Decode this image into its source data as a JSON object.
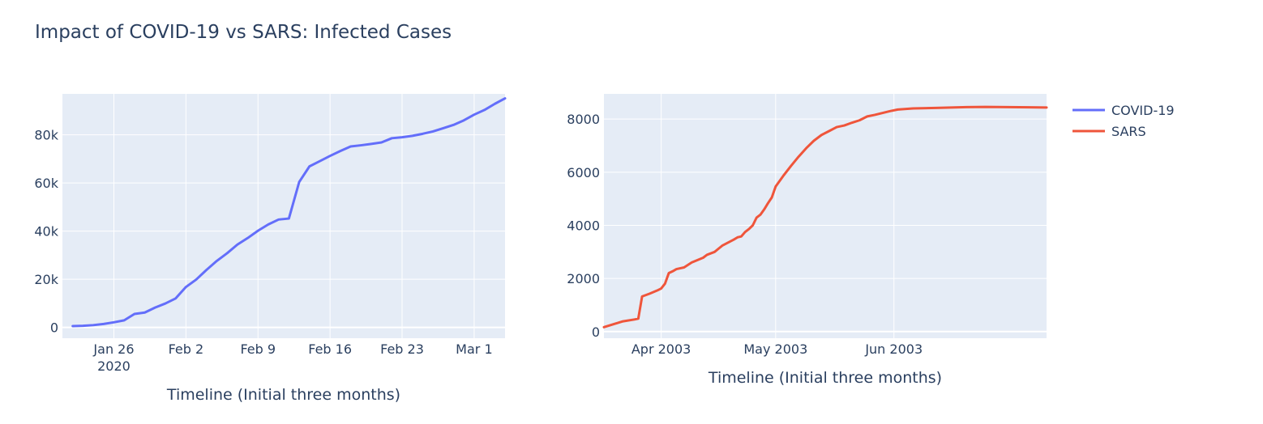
{
  "chart_data": {
    "type": "line",
    "title": "Impact of COVID-19 vs SARS: Infected Cases",
    "colors": {
      "plot_background": "#e5ecf6",
      "grid": "#ffffff",
      "text": "#2a3f5f"
    },
    "legend": {
      "placement": "top-right",
      "entries": [
        {
          "name": "COVID-19",
          "color": "#636efa"
        },
        {
          "name": "SARS",
          "color": "#ef553b"
        }
      ]
    },
    "subplots": [
      {
        "id": "covid",
        "xlabel": "Timeline (Initial three months)",
        "ylabel": "",
        "grid": true,
        "xlim": [
          "2020-01-21",
          "2020-03-04"
        ],
        "ylim": [
          -4500,
          97000
        ],
        "x_ticks": [
          {
            "date": "2020-01-26",
            "label": "Jan 26",
            "sublabel": "2020"
          },
          {
            "date": "2020-02-02",
            "label": "Feb 2"
          },
          {
            "date": "2020-02-09",
            "label": "Feb 9"
          },
          {
            "date": "2020-02-16",
            "label": "Feb 16"
          },
          {
            "date": "2020-02-23",
            "label": "Feb 23"
          },
          {
            "date": "2020-03-01",
            "label": "Mar 1"
          }
        ],
        "y_ticks": [
          {
            "value": 0,
            "label": "0"
          },
          {
            "value": 20000,
            "label": "20k"
          },
          {
            "value": 40000,
            "label": "40k"
          },
          {
            "value": 60000,
            "label": "60k"
          },
          {
            "value": 80000,
            "label": "80k"
          }
        ],
        "series": [
          {
            "name": "COVID-19",
            "color": "#636efa",
            "points": [
              [
                "2020-01-22",
                555
              ],
              [
                "2020-01-23",
                654
              ],
              [
                "2020-01-24",
                941
              ],
              [
                "2020-01-25",
                1434
              ],
              [
                "2020-01-26",
                2118
              ],
              [
                "2020-01-27",
                2927
              ],
              [
                "2020-01-28",
                5578
              ],
              [
                "2020-01-29",
                6166
              ],
              [
                "2020-01-30",
                8234
              ],
              [
                "2020-01-31",
                9927
              ],
              [
                "2020-02-01",
                12038
              ],
              [
                "2020-02-02",
                16787
              ],
              [
                "2020-02-03",
                19881
              ],
              [
                "2020-02-04",
                23892
              ],
              [
                "2020-02-05",
                27635
              ],
              [
                "2020-02-06",
                30817
              ],
              [
                "2020-02-07",
                34391
              ],
              [
                "2020-02-08",
                37120
              ],
              [
                "2020-02-09",
                40150
              ],
              [
                "2020-02-10",
                42762
              ],
              [
                "2020-02-11",
                44802
              ],
              [
                "2020-02-12",
                45221
              ],
              [
                "2020-02-13",
                60368
              ],
              [
                "2020-02-14",
                66885
              ],
              [
                "2020-02-15",
                69030
              ],
              [
                "2020-02-16",
                71224
              ],
              [
                "2020-02-17",
                73258
              ],
              [
                "2020-02-18",
                75136
              ],
              [
                "2020-02-19",
                75639
              ],
              [
                "2020-02-20",
                76197
              ],
              [
                "2020-02-21",
                76823
              ],
              [
                "2020-02-22",
                78579
              ],
              [
                "2020-02-23",
                78965
              ],
              [
                "2020-02-24",
                79568
              ],
              [
                "2020-02-25",
                80413
              ],
              [
                "2020-02-26",
                81395
              ],
              [
                "2020-02-27",
                82754
              ],
              [
                "2020-02-28",
                84120
              ],
              [
                "2020-02-29",
                86011
              ],
              [
                "2020-03-01",
                88369
              ],
              [
                "2020-03-02",
                90306
              ],
              [
                "2020-03-03",
                92840
              ],
              [
                "2020-03-04",
                95120
              ]
            ]
          }
        ]
      },
      {
        "id": "sars",
        "xlabel": "Timeline (Initial three months)",
        "ylabel": "",
        "grid": true,
        "xlim": [
          "2003-03-17",
          "2003-07-11"
        ],
        "ylim": [
          -250,
          8950
        ],
        "x_ticks": [
          {
            "date": "2003-04-01",
            "label": "Apr 2003"
          },
          {
            "date": "2003-05-01",
            "label": "May 2003"
          },
          {
            "date": "2003-06-01",
            "label": "Jun 2003"
          }
        ],
        "y_ticks": [
          {
            "value": 0,
            "label": "0"
          },
          {
            "value": 2000,
            "label": "2000"
          },
          {
            "value": 4000,
            "label": "4000"
          },
          {
            "value": 6000,
            "label": "6000"
          },
          {
            "value": 8000,
            "label": "8000"
          }
        ],
        "series": [
          {
            "name": "SARS",
            "color": "#ef553b",
            "points": [
              [
                "2003-03-17",
                167
              ],
              [
                "2003-03-20",
                300
              ],
              [
                "2003-03-22",
                386
              ],
              [
                "2003-03-25",
                456
              ],
              [
                "2003-03-26",
                487
              ],
              [
                "2003-03-27",
                1323
              ],
              [
                "2003-03-29",
                1430
              ],
              [
                "2003-03-31",
                1550
              ],
              [
                "2003-04-01",
                1622
              ],
              [
                "2003-04-02",
                1804
              ],
              [
                "2003-04-03",
                2203
              ],
              [
                "2003-04-04",
                2270
              ],
              [
                "2003-04-05",
                2353
              ],
              [
                "2003-04-07",
                2416
              ],
              [
                "2003-04-09",
                2601
              ],
              [
                "2003-04-12",
                2781
              ],
              [
                "2003-04-13",
                2890
              ],
              [
                "2003-04-15",
                3000
              ],
              [
                "2003-04-17",
                3235
              ],
              [
                "2003-04-20",
                3461
              ],
              [
                "2003-04-21",
                3547
              ],
              [
                "2003-04-22",
                3584
              ],
              [
                "2003-04-23",
                3750
              ],
              [
                "2003-04-24",
                3861
              ],
              [
                "2003-04-25",
                4000
              ],
              [
                "2003-04-26",
                4290
              ],
              [
                "2003-04-27",
                4400
              ],
              [
                "2003-04-28",
                4600
              ],
              [
                "2003-04-29",
                4836
              ],
              [
                "2003-04-30",
                5050
              ],
              [
                "2003-05-01",
                5462
              ],
              [
                "2003-05-03",
                5863
              ],
              [
                "2003-05-05",
                6234
              ],
              [
                "2003-05-07",
                6583
              ],
              [
                "2003-05-09",
                6903
              ],
              [
                "2003-05-11",
                7183
              ],
              [
                "2003-05-13",
                7400
              ],
              [
                "2003-05-15",
                7548
              ],
              [
                "2003-05-17",
                7700
              ],
              [
                "2003-05-19",
                7761
              ],
              [
                "2003-05-21",
                7864
              ],
              [
                "2003-05-23",
                7956
              ],
              [
                "2003-05-25",
                8100
              ],
              [
                "2003-05-27",
                8160
              ],
              [
                "2003-05-31",
                8300
              ],
              [
                "2003-06-02",
                8360
              ],
              [
                "2003-06-06",
                8400
              ],
              [
                "2003-06-12",
                8420
              ],
              [
                "2003-06-20",
                8450
              ],
              [
                "2003-06-25",
                8460
              ],
              [
                "2003-07-11",
                8437
              ]
            ]
          }
        ]
      }
    ]
  }
}
